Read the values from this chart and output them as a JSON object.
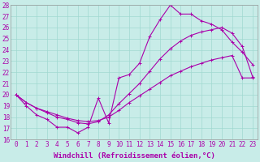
{
  "xlabel": "Windchill (Refroidissement éolien,°C)",
  "bg_color": "#c8ece8",
  "line_color": "#aa00aa",
  "xlim": [
    -0.5,
    23.5
  ],
  "ylim": [
    16,
    28
  ],
  "xticks": [
    0,
    1,
    2,
    3,
    4,
    5,
    6,
    7,
    8,
    9,
    10,
    11,
    12,
    13,
    14,
    15,
    16,
    17,
    18,
    19,
    20,
    21,
    22,
    23
  ],
  "yticks": [
    16,
    17,
    18,
    19,
    20,
    21,
    22,
    23,
    24,
    25,
    26,
    27,
    28
  ],
  "line1_x": [
    0,
    1,
    2,
    3,
    4,
    5,
    6,
    7,
    8,
    9,
    10,
    11,
    12,
    13,
    14,
    15,
    16,
    17,
    18,
    19,
    20,
    21,
    22,
    23
  ],
  "line1_y": [
    20.0,
    19.0,
    18.2,
    17.8,
    17.1,
    17.1,
    16.6,
    17.1,
    19.7,
    17.5,
    21.5,
    21.8,
    22.8,
    25.2,
    26.7,
    28.0,
    27.2,
    27.2,
    26.6,
    26.3,
    25.8,
    24.7,
    23.8,
    22.7
  ],
  "line2_x": [
    0,
    1,
    2,
    3,
    4,
    5,
    6,
    7,
    8,
    9,
    10,
    11,
    12,
    13,
    14,
    15,
    16,
    17,
    18,
    19,
    20,
    21,
    22,
    23
  ],
  "line2_y": [
    20.0,
    19.3,
    18.8,
    18.4,
    18.0,
    17.8,
    17.5,
    17.4,
    17.6,
    18.2,
    19.2,
    20.1,
    21.0,
    22.1,
    23.2,
    24.1,
    24.8,
    25.3,
    25.6,
    25.8,
    26.0,
    25.5,
    24.3,
    21.6
  ],
  "line3_x": [
    0,
    1,
    2,
    3,
    4,
    5,
    6,
    7,
    8,
    9,
    10,
    11,
    12,
    13,
    14,
    15,
    16,
    17,
    18,
    19,
    20,
    21,
    22,
    23
  ],
  "line3_y": [
    20.0,
    19.3,
    18.8,
    18.5,
    18.2,
    17.9,
    17.7,
    17.6,
    17.7,
    18.0,
    18.6,
    19.3,
    19.9,
    20.5,
    21.1,
    21.7,
    22.1,
    22.5,
    22.8,
    23.1,
    23.3,
    23.5,
    21.5,
    21.5
  ],
  "grid_color": "#a0d8d0",
  "tick_fontsize": 5.5,
  "label_fontsize": 6.5
}
